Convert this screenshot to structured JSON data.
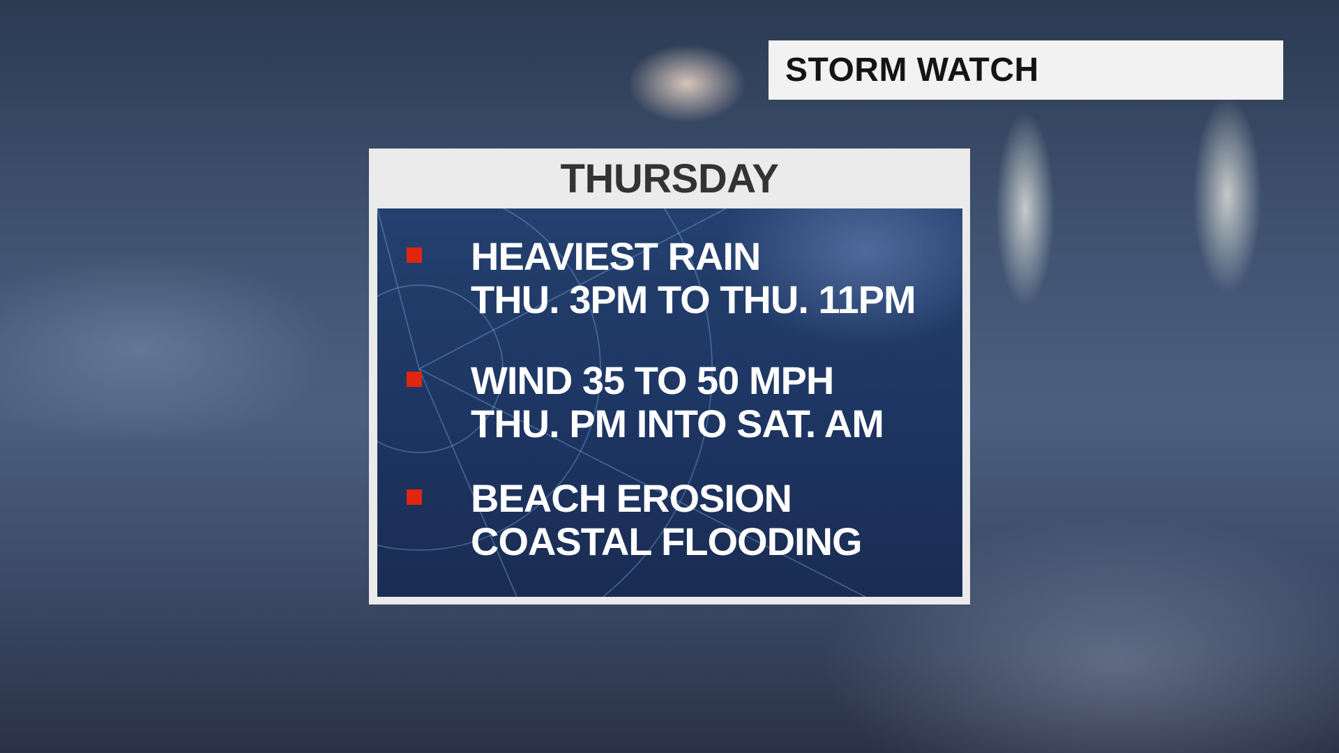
{
  "banner": {
    "title": "STORM WATCH"
  },
  "panel": {
    "day": "THURSDAY",
    "items": [
      {
        "line1": "HEAVIEST RAIN",
        "line2": "THU. 3PM TO THU. 11PM"
      },
      {
        "line1": "WIND 35 TO 50 MPH",
        "line2": "THU. PM INTO SAT. AM"
      },
      {
        "line1": "BEACH EROSION",
        "line2": "COASTAL FLOODING"
      }
    ],
    "bullet_color": "#e0260e"
  }
}
